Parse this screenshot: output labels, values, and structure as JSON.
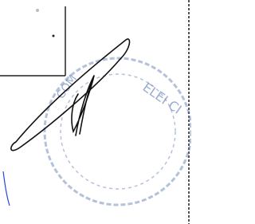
{
  "stamp": {
    "top_text": "ELEI CI",
    "left_text": "COM"
  }
}
